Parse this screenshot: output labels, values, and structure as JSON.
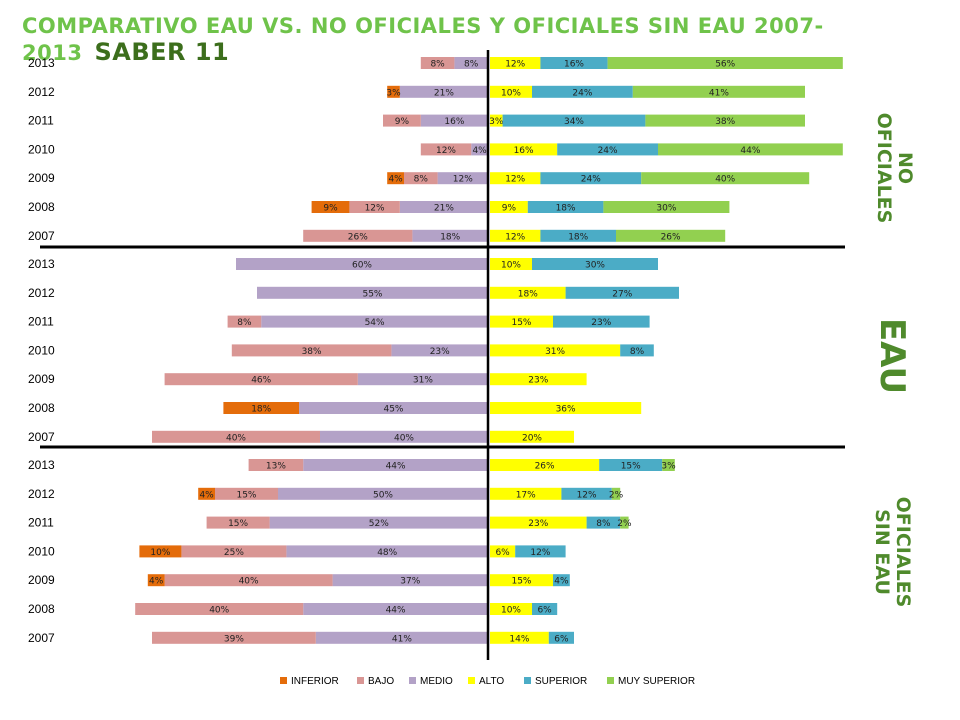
{
  "title": "COMPARATIVO EAU VS. NO OFICIALES Y OFICIALES SIN EAU 2007-2013",
  "brand": "SABER 11",
  "colors": {
    "INFERIOR": "#e46c0a",
    "BAJO": "#d99694",
    "MEDIO": "#b3a2c7",
    "ALTO": "#ffff00",
    "SUPERIOR": "#4bacc6",
    "MUY SUPERIOR": "#92d050",
    "title": "#6fc34a",
    "brand": "#3c6e1c",
    "side_label": "#4f8a2c"
  },
  "chart_data": {
    "type": "bar",
    "orientation": "horizontal-diverging",
    "legend_position": "bottom",
    "grid": false,
    "legend": [
      "INFERIOR",
      "BAJO",
      "MEDIO",
      "ALTO",
      "SUPERIOR",
      "MUY SUPERIOR"
    ],
    "groups": [
      {
        "label": "NO OFICIALES",
        "rows": [
          {
            "year": "2013",
            "INFERIOR": 0,
            "BAJO": 8,
            "MEDIO": 8,
            "ALTO": 12,
            "SUPERIOR": 16,
            "MUY SUPERIOR": 56
          },
          {
            "year": "2012",
            "INFERIOR": 3,
            "BAJO": 0,
            "MEDIO": 21,
            "ALTO": 10,
            "SUPERIOR": 24,
            "MUY SUPERIOR": 41
          },
          {
            "year": "2011",
            "INFERIOR": 0,
            "BAJO": 9,
            "MEDIO": 16,
            "ALTO": 3,
            "SUPERIOR": 34,
            "MUY SUPERIOR": 38
          },
          {
            "year": "2010",
            "INFERIOR": 0,
            "BAJO": 12,
            "MEDIO": 4,
            "ALTO": 16,
            "SUPERIOR": 24,
            "MUY SUPERIOR": 44
          },
          {
            "year": "2009",
            "INFERIOR": 4,
            "BAJO": 8,
            "MEDIO": 12,
            "ALTO": 12,
            "SUPERIOR": 24,
            "MUY SUPERIOR": 40
          },
          {
            "year": "2008",
            "INFERIOR": 9,
            "BAJO": 12,
            "MEDIO": 21,
            "ALTO": 9,
            "SUPERIOR": 18,
            "MUY SUPERIOR": 30
          },
          {
            "year": "2007",
            "INFERIOR": 0,
            "BAJO": 26,
            "MEDIO": 18,
            "ALTO": 12,
            "SUPERIOR": 18,
            "MUY SUPERIOR": 26
          }
        ]
      },
      {
        "label": "EAU",
        "rows": [
          {
            "year": "2013",
            "INFERIOR": 0,
            "BAJO": 0,
            "MEDIO": 60,
            "ALTO": 10,
            "SUPERIOR": 30,
            "MUY SUPERIOR": 0
          },
          {
            "year": "2012",
            "INFERIOR": 0,
            "BAJO": 0,
            "MEDIO": 55,
            "ALTO": 18,
            "SUPERIOR": 27,
            "MUY SUPERIOR": 0
          },
          {
            "year": "2011",
            "INFERIOR": 0,
            "BAJO": 8,
            "MEDIO": 54,
            "ALTO": 15,
            "SUPERIOR": 23,
            "MUY SUPERIOR": 0
          },
          {
            "year": "2010",
            "INFERIOR": 0,
            "BAJO": 38,
            "MEDIO": 23,
            "ALTO": 31,
            "SUPERIOR": 8,
            "MUY SUPERIOR": 0
          },
          {
            "year": "2009",
            "INFERIOR": 0,
            "BAJO": 46,
            "MEDIO": 31,
            "ALTO": 23,
            "SUPERIOR": 0,
            "MUY SUPERIOR": 0
          },
          {
            "year": "2008",
            "INFERIOR": 18,
            "BAJO": 0,
            "MEDIO": 45,
            "ALTO": 36,
            "SUPERIOR": 0,
            "MUY SUPERIOR": 0
          },
          {
            "year": "2007",
            "INFERIOR": 0,
            "BAJO": 40,
            "MEDIO": 40,
            "ALTO": 20,
            "SUPERIOR": 0,
            "MUY SUPERIOR": 0
          }
        ]
      },
      {
        "label": "OFICIALES SIN EAU",
        "rows": [
          {
            "year": "2013",
            "INFERIOR": 0,
            "BAJO": 13,
            "MEDIO": 44,
            "ALTO": 26,
            "SUPERIOR": 15,
            "MUY SUPERIOR": 3
          },
          {
            "year": "2012",
            "INFERIOR": 4,
            "BAJO": 15,
            "MEDIO": 50,
            "ALTO": 17,
            "SUPERIOR": 12,
            "MUY SUPERIOR": 2
          },
          {
            "year": "2011",
            "INFERIOR": 0,
            "BAJO": 15,
            "MEDIO": 52,
            "ALTO": 23,
            "SUPERIOR": 8,
            "MUY SUPERIOR": 2
          },
          {
            "year": "2010",
            "INFERIOR": 10,
            "BAJO": 25,
            "MEDIO": 48,
            "ALTO": 6,
            "SUPERIOR": 12,
            "MUY SUPERIOR": 0
          },
          {
            "year": "2009",
            "INFERIOR": 4,
            "BAJO": 40,
            "MEDIO": 37,
            "ALTO": 15,
            "SUPERIOR": 4,
            "MUY SUPERIOR": 0
          },
          {
            "year": "2008",
            "INFERIOR": 0,
            "BAJO": 40,
            "MEDIO": 44,
            "ALTO": 10,
            "SUPERIOR": 6,
            "MUY SUPERIOR": 0
          },
          {
            "year": "2007",
            "INFERIOR": 0,
            "BAJO": 39,
            "MEDIO": 41,
            "ALTO": 14,
            "SUPERIOR": 6,
            "MUY SUPERIOR": 0
          }
        ]
      }
    ]
  }
}
